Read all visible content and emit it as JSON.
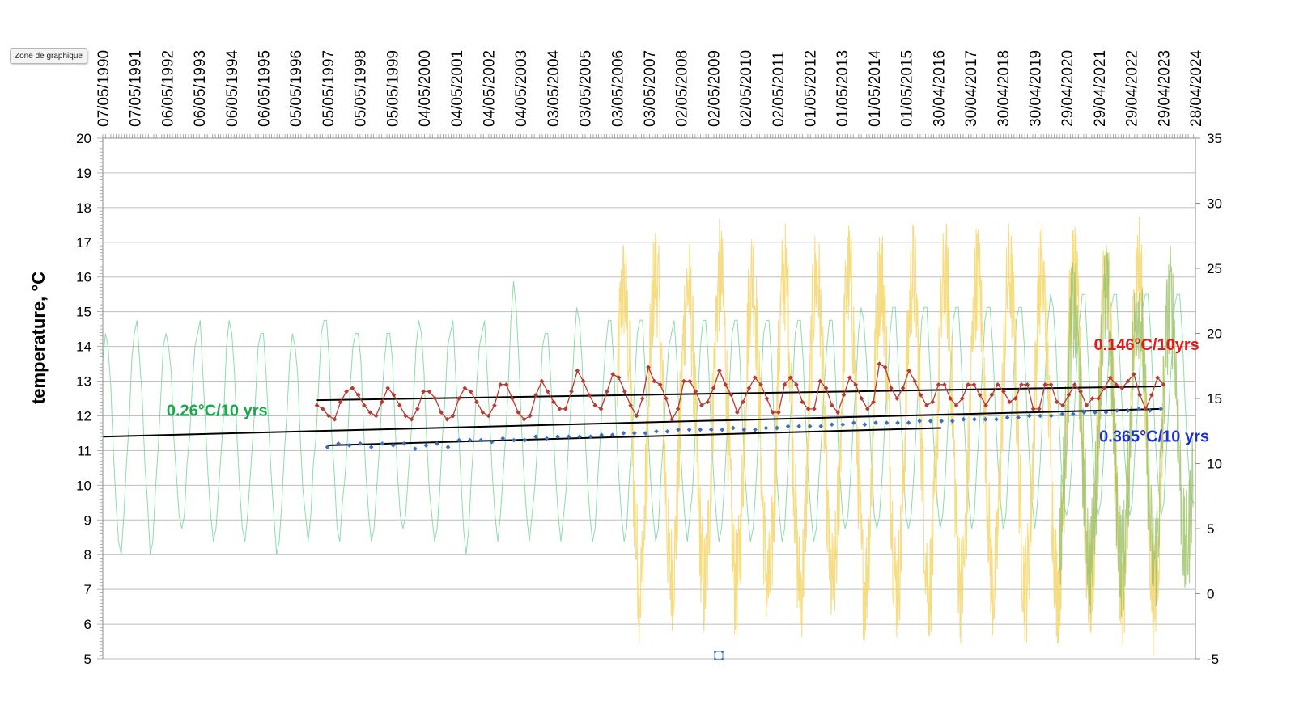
{
  "tooltip": "Zone de graphique",
  "chart_data": {
    "type": "line",
    "xlabel": "",
    "ylabel": "temperature, °C",
    "ylim": [
      5,
      20
    ],
    "y2lim": [
      -5,
      35
    ],
    "yticks": [
      5,
      6,
      7,
      8,
      9,
      10,
      11,
      12,
      13,
      14,
      15,
      16,
      17,
      18,
      19,
      20
    ],
    "y2ticks": [
      -5,
      0,
      5,
      10,
      15,
      20,
      25,
      30,
      35
    ],
    "xlim": [
      "1990-05-07",
      "2024-04-28"
    ],
    "x_tick_labels": [
      "07/05/1990",
      "07/05/1991",
      "06/05/1992",
      "06/05/1993",
      "06/05/1994",
      "06/05/1995",
      "05/05/1996",
      "05/05/1997",
      "05/05/1998",
      "05/05/1999",
      "04/05/2000",
      "04/05/2001",
      "04/05/2002",
      "04/05/2003",
      "03/05/2004",
      "03/05/2005",
      "03/05/2006",
      "03/05/2007",
      "02/05/2008",
      "02/05/2009",
      "02/05/2010",
      "02/05/2011",
      "01/05/2012",
      "01/05/2013",
      "01/05/2014",
      "01/05/2015",
      "30/04/2016",
      "30/04/2017",
      "30/04/2018",
      "30/04/2019",
      "29/04/2020",
      "29/04/2021",
      "29/04/2022",
      "29/04/2023",
      "28/04/2024"
    ],
    "grid": true,
    "legend": "none",
    "colors": {
      "monthly": "#7fd9a2",
      "daily": "#f5d76e",
      "recent": "#9cc26a",
      "annual": "#b83a32",
      "running": "#3a6fc4",
      "trend": "#000000"
    },
    "annotations": [
      {
        "text": "0.146°C/10yrs",
        "color": "#e31a1c",
        "x": "2021-03-01",
        "y": 13.9
      },
      {
        "text": "0.26°C/10 yrs",
        "color": "#1aa84a",
        "x": "1992-05-01",
        "y": 12.0
      },
      {
        "text": "0.365°C/10 yrs",
        "color": "#1f2fd0",
        "x": "2021-05-01",
        "y": 11.25
      }
    ],
    "series": [
      {
        "role": "monthly",
        "axis": "right",
        "x_start": "1990-05-07",
        "x_end": "2024-04-28",
        "style": "seasonal-line",
        "y": [
          18,
          20,
          19,
          16,
          11,
          7,
          4,
          3,
          6,
          10,
          13,
          18,
          20,
          21,
          18,
          15,
          10,
          7,
          3,
          4,
          8,
          11,
          15,
          19,
          20,
          19,
          17,
          12,
          9,
          6,
          5,
          6,
          10,
          12,
          16,
          19,
          20,
          21,
          17,
          13,
          9,
          6,
          4,
          5,
          8,
          11,
          14,
          19,
          21,
          20,
          17,
          12,
          8,
          5,
          4,
          6,
          9,
          12,
          15,
          19,
          20,
          20,
          17,
          13,
          9,
          6,
          3,
          4,
          7,
          11,
          14,
          18,
          20,
          19,
          17,
          12,
          8,
          6,
          4,
          6,
          10,
          12,
          16,
          20,
          21,
          21,
          18,
          12,
          9,
          5,
          4,
          7,
          9,
          12,
          16,
          19,
          20,
          20,
          18,
          13,
          9,
          6,
          4,
          5,
          8,
          11,
          15,
          18,
          20,
          20,
          18,
          13,
          9,
          6,
          5,
          6,
          9,
          12,
          15,
          19,
          21,
          20,
          17,
          12,
          8,
          6,
          4,
          5,
          8,
          12,
          15,
          19,
          20,
          21,
          17,
          13,
          9,
          5,
          3,
          5,
          9,
          12,
          16,
          19,
          20,
          21,
          17,
          13,
          9,
          6,
          4,
          6,
          9,
          12,
          16,
          21,
          24,
          22,
          18,
          13,
          9,
          6,
          4,
          6,
          8,
          11,
          15,
          19,
          20,
          20,
          17,
          13,
          9,
          6,
          4,
          6,
          8,
          12,
          15,
          19,
          22,
          21,
          18,
          13,
          9,
          6,
          4,
          5,
          9,
          12,
          16,
          19,
          21,
          21,
          18,
          13,
          9,
          6,
          4,
          5,
          9,
          12,
          16,
          20,
          21,
          21,
          17,
          13,
          9,
          6,
          4,
          5,
          9,
          12,
          16,
          19,
          20,
          21,
          18,
          13,
          9,
          6,
          4,
          6,
          8,
          12,
          15,
          19,
          21,
          21,
          18,
          13,
          9,
          6,
          4,
          5,
          8,
          12,
          16,
          20,
          21,
          21,
          18,
          13,
          9,
          6,
          4,
          5,
          8,
          12,
          16,
          20,
          21,
          21,
          18,
          13,
          9,
          6,
          4,
          5,
          9,
          13,
          16,
          20,
          21,
          21,
          18,
          13,
          9,
          6,
          4,
          5,
          9,
          12,
          16,
          19,
          21,
          21,
          18,
          13,
          9,
          6,
          5,
          6,
          9,
          13,
          16,
          20,
          22,
          21,
          18,
          14,
          10,
          6,
          5,
          6,
          9,
          13,
          16,
          20,
          22,
          22,
          18,
          14,
          10,
          6,
          5,
          6,
          9,
          13,
          17,
          21,
          22,
          22,
          18,
          14,
          10,
          7,
          5,
          6,
          9,
          13,
          17,
          21,
          22,
          22,
          18,
          14,
          10,
          7,
          5,
          6,
          10,
          13,
          17,
          21,
          22,
          22,
          19,
          14,
          10,
          7,
          5,
          6,
          10,
          13,
          17,
          21,
          22,
          22,
          19,
          14,
          10,
          7,
          5,
          7,
          10,
          14,
          17,
          21,
          23,
          22,
          19,
          14,
          10,
          7,
          6,
          7,
          10,
          14,
          18,
          21,
          23,
          23,
          19,
          15,
          11,
          7,
          6,
          7,
          10,
          14,
          18,
          22,
          23,
          23,
          19,
          15,
          11,
          8,
          6,
          7,
          11,
          14,
          18,
          22,
          23,
          23,
          20,
          15,
          11,
          8,
          6,
          7,
          11,
          15,
          18,
          22,
          23,
          23,
          20,
          15,
          11,
          8,
          7,
          7
        ]
      },
      {
        "role": "daily",
        "axis": "right",
        "x_start": "2006-05-03",
        "x_end": "2023-04-29",
        "style": "daily-band",
        "amplitude_by_year": [
          11,
          12,
          11,
          12,
          12,
          12,
          12,
          12,
          12,
          12,
          12,
          12,
          12,
          12,
          12,
          12,
          13
        ]
      },
      {
        "role": "recent",
        "axis": "right",
        "x_start": "2020-02-01",
        "x_end": "2024-04-01",
        "style": "daily-band-light",
        "amplitude_by_year": [
          9,
          10,
          10,
          10,
          9
        ]
      },
      {
        "role": "annual",
        "axis": "left",
        "x_start": "1997-01-01",
        "x_end": "2023-05-01",
        "style": "markers-line",
        "y": [
          12.3,
          12.2,
          12.0,
          11.9,
          12.4,
          12.7,
          12.8,
          12.6,
          12.3,
          12.1,
          12.0,
          12.4,
          12.8,
          12.6,
          12.3,
          12.0,
          11.9,
          12.2,
          12.7,
          12.7,
          12.5,
          12.1,
          11.9,
          12.0,
          12.5,
          12.8,
          12.7,
          12.4,
          12.1,
          12.0,
          12.3,
          12.9,
          12.9,
          12.5,
          12.1,
          11.9,
          12.0,
          12.6,
          13.0,
          12.7,
          12.4,
          12.2,
          12.2,
          12.7,
          13.3,
          13.0,
          12.6,
          12.3,
          12.2,
          12.7,
          13.2,
          13.1,
          12.7,
          12.3,
          12.0,
          12.5,
          13.4,
          13.0,
          12.9,
          12.5,
          11.9,
          12.2,
          13.0,
          13.0,
          12.7,
          12.3,
          12.4,
          12.8,
          13.3,
          12.9,
          12.6,
          12.1,
          12.4,
          12.8,
          13.1,
          12.9,
          12.5,
          12.1,
          12.1,
          12.9,
          13.1,
          12.9,
          12.4,
          12.2,
          12.2,
          13.0,
          12.8,
          12.3,
          12.1,
          12.6,
          13.1,
          12.9,
          12.5,
          12.2,
          12.4,
          13.5,
          13.4,
          12.8,
          12.5,
          12.8,
          13.3,
          13.0,
          12.6,
          12.3,
          12.4,
          12.9,
          12.9,
          12.5,
          12.3,
          12.5,
          12.9,
          12.9,
          12.6,
          12.3,
          12.6,
          12.9,
          12.7,
          12.4,
          12.5,
          12.9,
          12.9,
          12.2,
          12.2,
          12.9,
          12.9,
          12.4,
          12.3,
          12.6,
          12.9,
          12.7,
          12.3,
          12.5,
          12.5,
          12.8,
          13.1,
          12.9,
          12.8,
          13.0,
          13.2,
          12.6,
          12.2,
          12.6,
          13.1,
          12.9
        ]
      },
      {
        "role": "running",
        "axis": "left",
        "x_start": "1997-05-01",
        "x_end": "2023-04-01",
        "style": "markers",
        "y": [
          11.1,
          11.2,
          11.15,
          11.2,
          11.1,
          11.2,
          11.15,
          11.2,
          11.05,
          11.15,
          11.2,
          11.1,
          11.3,
          11.3,
          11.3,
          11.25,
          11.35,
          11.3,
          11.3,
          11.4,
          11.35,
          11.4,
          11.4,
          11.4,
          11.4,
          11.45,
          11.45,
          11.5,
          11.5,
          11.5,
          11.55,
          11.55,
          11.6,
          11.6,
          11.6,
          11.6,
          11.6,
          11.65,
          11.6,
          11.6,
          11.65,
          11.65,
          11.7,
          11.7,
          11.7,
          11.7,
          11.75,
          11.75,
          11.8,
          11.75,
          11.8,
          11.8,
          11.8,
          11.8,
          11.85,
          11.85,
          11.85,
          11.85,
          11.9,
          11.9,
          11.9,
          11.9,
          11.95,
          11.95,
          12.0,
          12.0,
          12.0,
          12.05,
          12.05,
          12.1,
          12.1,
          12.1,
          12.15,
          12.15,
          12.2,
          12.15,
          12.2
        ]
      },
      {
        "role": "trend",
        "axis": "left",
        "name": "",
        "points": [
          [
            "1990-05-07",
            11.4
          ],
          [
            "2023-04-01",
            12.2
          ]
        ]
      },
      {
        "role": "trend",
        "axis": "left",
        "name": "",
        "points": [
          [
            "1997-01-01",
            12.45
          ],
          [
            "2023-04-01",
            12.85
          ]
        ]
      },
      {
        "role": "trend",
        "axis": "left",
        "name": "",
        "points": [
          [
            "1997-05-01",
            11.15
          ],
          [
            "2016-06-01",
            11.65
          ]
        ]
      }
    ]
  }
}
